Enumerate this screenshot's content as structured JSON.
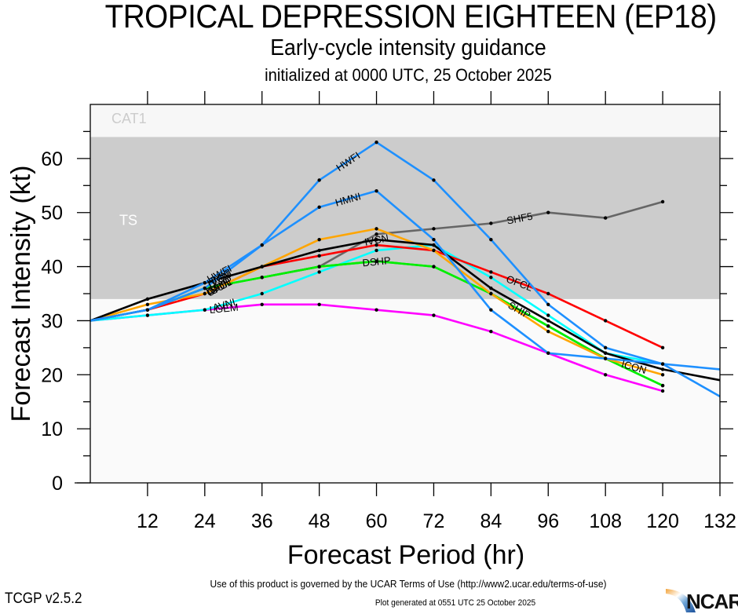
{
  "header": {
    "title": "TROPICAL DEPRESSION EIGHTEEN (EP18)",
    "subtitle": "Early-cycle intensity guidance",
    "init_line": "initialized at 0000 UTC, 25 October 2025"
  },
  "footer": {
    "terms": "Use of this product is governed by the UCAR Terms of Use (http://www2.ucar.edu/terms-of-use)",
    "version": "TCGP v2.5.2",
    "generated": "Plot generated at 0551 UTC   25 October 2025",
    "logo_text": "NCAR"
  },
  "chart_data": {
    "type": "line",
    "title": "TROPICAL DEPRESSION EIGHTEEN (EP18)",
    "subtitle": "Early-cycle intensity guidance",
    "xlabel": "Forecast Period (hr)",
    "ylabel": "Forecast Intensity (kt)",
    "xlim": [
      0,
      132
    ],
    "ylim": [
      0,
      70
    ],
    "xticks": [
      12,
      24,
      36,
      48,
      60,
      72,
      84,
      96,
      108,
      120,
      132
    ],
    "yticks": [
      0,
      10,
      20,
      30,
      40,
      50,
      60
    ],
    "grid": false,
    "bands": [
      {
        "name": "TD",
        "label": "",
        "from": 0,
        "to": 34,
        "color": "#fafafa"
      },
      {
        "name": "TS",
        "label": "TS",
        "from": 34,
        "to": 64,
        "color": "#cccccc",
        "label_color": "#ffffff"
      },
      {
        "name": "CAT1",
        "label": "CAT1",
        "from": 64,
        "to": 70,
        "color": "#f7f7f7",
        "label_color": "#cccccc"
      }
    ],
    "series": [
      {
        "name": "SHF5",
        "color": "#666666",
        "x": [
          36,
          48,
          60,
          72,
          84,
          96,
          108,
          120
        ],
        "values": [
          38,
          40,
          46,
          47,
          48,
          50,
          49,
          52
        ],
        "label_at": 90
      },
      {
        "name": "LGEM",
        "color": "#ff00ff",
        "x": [
          0,
          12,
          24,
          36,
          48,
          60,
          72,
          84,
          96,
          108,
          120
        ],
        "values": [
          30,
          31,
          32,
          33,
          33,
          32,
          31,
          28,
          24,
          20,
          17
        ],
        "label_at": 28
      },
      {
        "name": "AVNI",
        "color": "#00ffff",
        "x": [
          0,
          12,
          24,
          36,
          48,
          60,
          72,
          84,
          96,
          108,
          120
        ],
        "values": [
          30,
          31,
          32,
          35,
          39,
          43,
          44,
          38,
          31,
          24,
          22
        ],
        "label_at": 28
      },
      {
        "name": "DSHP",
        "color": "#00ee00",
        "x": [
          0,
          12,
          24,
          36,
          48,
          60,
          72,
          84,
          96,
          108,
          120
        ],
        "values": [
          30,
          32,
          36,
          38,
          40,
          41,
          40,
          35,
          29,
          23,
          18
        ],
        "label_at": 60
      },
      {
        "name": "SHIP",
        "color": "#00ee00",
        "x": [
          0,
          12,
          24,
          36,
          48,
          60,
          72,
          84,
          96,
          108,
          120
        ],
        "values": [
          30,
          32,
          36,
          38,
          40,
          41,
          40,
          35,
          29,
          23,
          18
        ],
        "label_at": 90
      },
      {
        "name": "OFCL",
        "color": "#ff0000",
        "x": [
          0,
          12,
          24,
          36,
          48,
          60,
          72,
          84,
          96,
          108,
          120
        ],
        "values": [
          30,
          32,
          35,
          40,
          42,
          44,
          43,
          39,
          35,
          30,
          25
        ],
        "label_at": 90
      },
      {
        "name": "ICON",
        "color": "#ffa500",
        "x": [
          0,
          12,
          24,
          36,
          48,
          60,
          72,
          84,
          96,
          108,
          120
        ],
        "values": [
          30,
          33,
          35,
          40,
          45,
          47,
          43,
          35,
          28,
          23,
          20
        ],
        "label_at": 114
      },
      {
        "name": "IVCN",
        "color": "#000000",
        "x": [
          0,
          12,
          24,
          36,
          48,
          60,
          72,
          84,
          96,
          108,
          120,
          132
        ],
        "values": [
          30,
          34,
          37,
          40,
          43,
          45,
          44,
          36,
          30,
          24,
          21,
          19
        ],
        "label_at": 60
      },
      {
        "name": "HMNI",
        "color": "#1e90ff",
        "x": [
          0,
          12,
          24,
          36,
          48,
          60,
          72,
          84,
          96,
          108,
          120,
          132
        ],
        "values": [
          30,
          32,
          36,
          44,
          51,
          54,
          45,
          32,
          24,
          23,
          22,
          21
        ],
        "label_at": 54
      },
      {
        "name": "HWFI",
        "color": "#1e90ff",
        "x": [
          0,
          12,
          24,
          36,
          48,
          60,
          72,
          84,
          96,
          108,
          120,
          132
        ],
        "values": [
          30,
          32,
          37,
          44,
          56,
          63,
          56,
          45,
          33,
          25,
          22,
          16
        ],
        "label_at": 54
      }
    ]
  }
}
